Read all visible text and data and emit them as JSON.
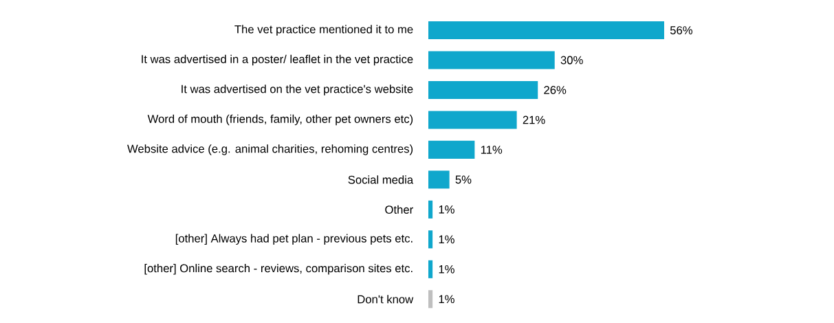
{
  "chart_data": {
    "type": "bar",
    "orientation": "horizontal",
    "categories": [
      "The vet practice mentioned it to me",
      "It was advertised in a poster/ leaflet in the vet practice",
      "It was advertised on the vet practice's website",
      "Word of mouth (friends, family, other pet owners etc)",
      "Website advice (e.g. animal charities, rehoming centres)",
      "Social media",
      "Other",
      "[other] Always had pet plan - previous pets etc.",
      "[other] Online search - reviews, comparison sites etc.",
      "Don't know"
    ],
    "values": [
      56,
      30,
      26,
      21,
      11,
      5,
      1,
      1,
      1,
      1
    ],
    "value_labels": [
      "56%",
      "30%",
      "26%",
      "21%",
      "11%",
      "5%",
      "1%",
      "1%",
      "1%",
      "1%"
    ],
    "colors": [
      "#0fa7cc",
      "#0fa7cc",
      "#0fa7cc",
      "#0fa7cc",
      "#0fa7cc",
      "#0fa7cc",
      "#0fa7cc",
      "#0fa7cc",
      "#0fa7cc",
      "#bfbfbf"
    ]
  }
}
